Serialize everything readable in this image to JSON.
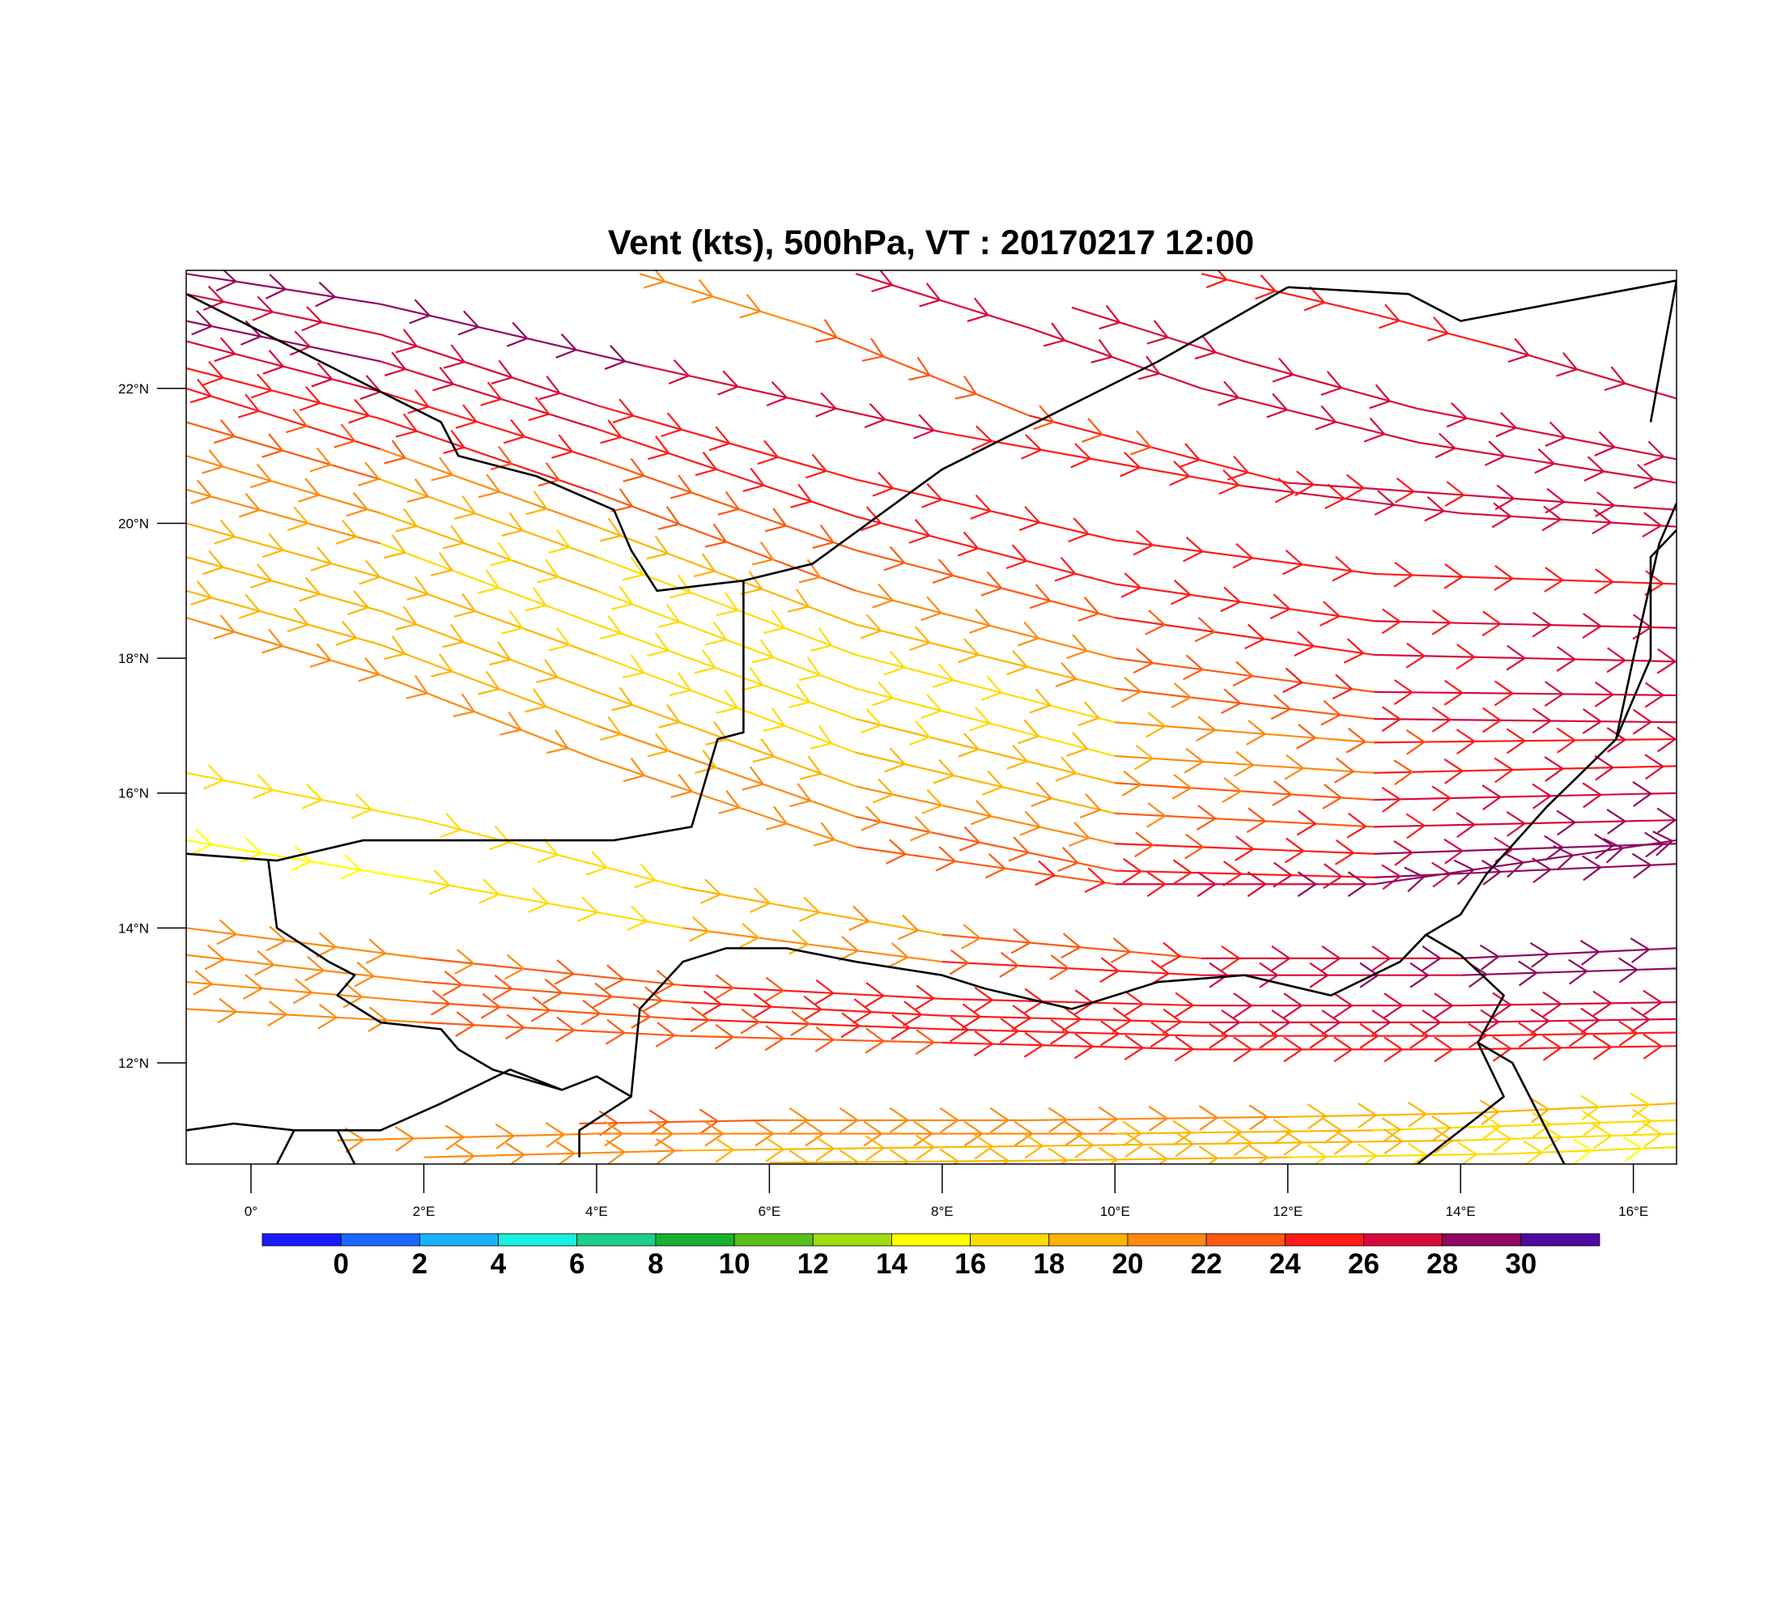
{
  "title": "Vent (kts), 500hPa, VT : 20170217  12:00",
  "map": {
    "lon_range": [
      -0.75,
      16.5
    ],
    "lat_range": [
      10.5,
      23.75
    ],
    "lon_ticks": [
      {
        "lon": 0,
        "label": "0°"
      },
      {
        "lon": 2,
        "label": "2°E"
      },
      {
        "lon": 4,
        "label": "4°E"
      },
      {
        "lon": 6,
        "label": "6°E"
      },
      {
        "lon": 8,
        "label": "8°E"
      },
      {
        "lon": 10,
        "label": "10°E"
      },
      {
        "lon": 12,
        "label": "12°E"
      },
      {
        "lon": 14,
        "label": "14°E"
      },
      {
        "lon": 16,
        "label": "16°E"
      }
    ],
    "lat_ticks": [
      {
        "lat": 12,
        "label": "12°N"
      },
      {
        "lat": 14,
        "label": "14°N"
      },
      {
        "lat": 16,
        "label": "16°N"
      },
      {
        "lat": 18,
        "label": "18°N"
      },
      {
        "lat": 20,
        "label": "20°N"
      },
      {
        "lat": 22,
        "label": "22°N"
      }
    ],
    "borders": [
      [
        [
          -0.75,
          23.4
        ],
        [
          0.8,
          22.4
        ],
        [
          2.2,
          21.5
        ],
        [
          2.4,
          21.0
        ],
        [
          3.3,
          20.7
        ],
        [
          4.2,
          20.2
        ],
        [
          4.4,
          19.6
        ],
        [
          4.7,
          19.0
        ],
        [
          5.7,
          19.15
        ],
        [
          6.5,
          19.4
        ],
        [
          8.0,
          20.8
        ],
        [
          10.5,
          22.4
        ],
        [
          12.0,
          23.5
        ]
      ],
      [
        [
          5.7,
          19.15
        ],
        [
          5.7,
          16.9
        ],
        [
          5.4,
          16.8
        ],
        [
          5.1,
          15.5
        ],
        [
          4.2,
          15.3
        ],
        [
          1.3,
          15.3
        ],
        [
          0.3,
          15.0
        ],
        [
          -0.75,
          15.1
        ]
      ],
      [
        [
          0.2,
          15.0
        ],
        [
          0.3,
          14.0
        ],
        [
          0.9,
          13.5
        ],
        [
          1.2,
          13.3
        ],
        [
          1.0,
          13.0
        ],
        [
          1.5,
          12.6
        ],
        [
          2.2,
          12.5
        ],
        [
          2.4,
          12.2
        ],
        [
          2.8,
          11.9
        ],
        [
          3.6,
          11.6
        ],
        [
          4.0,
          11.8
        ],
        [
          4.4,
          11.5
        ],
        [
          3.8,
          11.0
        ],
        [
          3.8,
          10.6
        ]
      ],
      [
        [
          4.4,
          11.5
        ],
        [
          4.5,
          12.8
        ],
        [
          5.0,
          13.5
        ],
        [
          5.5,
          13.7
        ],
        [
          6.2,
          13.7
        ],
        [
          7.0,
          13.5
        ],
        [
          8.0,
          13.3
        ],
        [
          8.5,
          13.1
        ],
        [
          9.5,
          12.8
        ],
        [
          10.5,
          13.2
        ],
        [
          11.5,
          13.3
        ],
        [
          12.5,
          13.0
        ],
        [
          13.3,
          13.5
        ],
        [
          13.6,
          13.9
        ],
        [
          14.0,
          14.2
        ],
        [
          14.3,
          14.8
        ],
        [
          15.0,
          15.8
        ],
        [
          15.8,
          16.8
        ],
        [
          16.2,
          18.0
        ],
        [
          16.2,
          19.5
        ],
        [
          16.5,
          19.9
        ]
      ],
      [
        [
          13.6,
          13.9
        ],
        [
          14.0,
          13.6
        ],
        [
          14.5,
          13.0
        ],
        [
          14.2,
          12.3
        ],
        [
          14.6,
          12.0
        ],
        [
          15.0,
          11.0
        ],
        [
          15.2,
          10.5
        ]
      ],
      [
        [
          14.2,
          12.3
        ],
        [
          14.5,
          11.5
        ],
        [
          13.5,
          10.5
        ]
      ],
      [
        [
          15.8,
          16.8
        ],
        [
          16.0,
          18.0
        ],
        [
          16.3,
          19.7
        ],
        [
          16.5,
          20.3
        ]
      ],
      [
        [
          13.4,
          23.4
        ],
        [
          14.0,
          23.0
        ],
        [
          16.5,
          23.6
        ]
      ],
      [
        [
          16.5,
          23.6
        ],
        [
          16.2,
          21.5
        ]
      ],
      [
        [
          12.0,
          23.5
        ],
        [
          13.4,
          23.4
        ]
      ],
      [
        [
          -0.75,
          11.0
        ],
        [
          -0.2,
          11.1
        ],
        [
          0.5,
          11.0
        ],
        [
          1.5,
          11.0
        ],
        [
          2.2,
          11.4
        ],
        [
          3.0,
          11.9
        ],
        [
          3.6,
          11.6
        ]
      ],
      [
        [
          0.5,
          11.0
        ],
        [
          0.3,
          10.5
        ]
      ],
      [
        [
          1.0,
          11.0
        ],
        [
          1.2,
          10.5
        ]
      ]
    ]
  },
  "colorbar": {
    "labels": [
      "0",
      "2",
      "4",
      "6",
      "8",
      "10",
      "12",
      "14",
      "16",
      "18",
      "20",
      "22",
      "24",
      "26",
      "28",
      "30"
    ],
    "colors": [
      "#1a1aff",
      "#1a66ff",
      "#1ab2ff",
      "#1af0e0",
      "#1ad08a",
      "#18b030",
      "#58c018",
      "#a0dc10",
      "#ffff00",
      "#ffdc00",
      "#ffb400",
      "#ff8a10",
      "#ff5a10",
      "#ff1a1a",
      "#d80a3a",
      "#900860",
      "#500aa0"
    ]
  },
  "streamlines": [
    {
      "pts": [
        [
          -0.75,
          23.7
        ],
        [
          1.5,
          23.25
        ],
        [
          4.5,
          22.35
        ],
        [
          8.0,
          21.35
        ],
        [
          11.5,
          20.55
        ],
        [
          14.0,
          20.15
        ],
        [
          16.5,
          19.95
        ]
      ],
      "speeds": [
        30,
        30,
        29,
        27,
        26,
        28,
        29
      ]
    },
    {
      "pts": [
        [
          -0.75,
          23.4
        ],
        [
          1.5,
          22.8
        ],
        [
          4.0,
          21.75
        ],
        [
          7.0,
          20.65
        ],
        [
          10.0,
          19.75
        ],
        [
          13.0,
          19.25
        ],
        [
          16.5,
          19.1
        ]
      ],
      "speeds": [
        29,
        28,
        27,
        26,
        25,
        26,
        27
      ]
    },
    {
      "pts": [
        [
          -0.75,
          23.0
        ],
        [
          1.5,
          22.4
        ],
        [
          4.0,
          21.4
        ],
        [
          7.0,
          20.1
        ],
        [
          10.0,
          19.1
        ],
        [
          13.0,
          18.55
        ],
        [
          16.5,
          18.45
        ]
      ],
      "speeds": [
        30,
        28,
        26,
        25,
        25,
        26,
        28
      ]
    },
    {
      "pts": [
        [
          -0.75,
          22.7
        ],
        [
          1.5,
          21.95
        ],
        [
          4.0,
          20.95
        ],
        [
          7.0,
          19.6
        ],
        [
          10.0,
          18.6
        ],
        [
          13.0,
          18.05
        ],
        [
          16.5,
          17.95
        ]
      ],
      "speeds": [
        29,
        27,
        25,
        24,
        24,
        26,
        29
      ]
    },
    {
      "pts": [
        [
          -0.75,
          22.3
        ],
        [
          1.5,
          21.55
        ],
        [
          4.0,
          20.45
        ],
        [
          7.0,
          19.0
        ],
        [
          10.0,
          18.0
        ],
        [
          13.0,
          17.5
        ],
        [
          16.5,
          17.45
        ]
      ],
      "speeds": [
        27,
        26,
        24,
        22,
        23,
        26,
        28
      ]
    },
    {
      "pts": [
        [
          -0.75,
          22.0
        ],
        [
          1.5,
          21.1
        ],
        [
          4.0,
          19.95
        ],
        [
          7.0,
          18.5
        ],
        [
          10.0,
          17.55
        ],
        [
          13.0,
          17.1
        ],
        [
          16.5,
          17.05
        ]
      ],
      "speeds": [
        26,
        24,
        20,
        19,
        22,
        25,
        29
      ]
    },
    {
      "pts": [
        [
          -0.75,
          21.5
        ],
        [
          1.5,
          20.65
        ],
        [
          4.0,
          19.5
        ],
        [
          7.0,
          18.05
        ],
        [
          10.0,
          17.05
        ],
        [
          13.0,
          16.75
        ],
        [
          16.5,
          16.8
        ]
      ],
      "speeds": [
        24,
        22,
        18,
        17,
        20,
        24,
        28
      ]
    },
    {
      "pts": [
        [
          -0.75,
          21.0
        ],
        [
          1.5,
          20.15
        ],
        [
          4.0,
          19.0
        ],
        [
          7.0,
          17.55
        ],
        [
          10.0,
          16.55
        ],
        [
          13.0,
          16.3
        ],
        [
          16.5,
          16.4
        ]
      ],
      "speeds": [
        23,
        21,
        17,
        17,
        20,
        24,
        29
      ]
    },
    {
      "pts": [
        [
          -0.75,
          20.5
        ],
        [
          1.5,
          19.7
        ],
        [
          4.0,
          18.5
        ],
        [
          7.0,
          17.1
        ],
        [
          10.0,
          16.15
        ],
        [
          13.0,
          15.9
        ],
        [
          16.5,
          16.0
        ]
      ],
      "speeds": [
        22,
        20,
        17,
        18,
        21,
        25,
        30
      ]
    },
    {
      "pts": [
        [
          -0.75,
          20.0
        ],
        [
          1.5,
          19.2
        ],
        [
          4.0,
          18.05
        ],
        [
          7.0,
          16.6
        ],
        [
          10.0,
          15.7
        ],
        [
          13.0,
          15.5
        ],
        [
          16.5,
          15.6
        ]
      ],
      "speeds": [
        21,
        20,
        18,
        19,
        22,
        26,
        31
      ]
    },
    {
      "pts": [
        [
          -0.75,
          19.5
        ],
        [
          1.5,
          18.7
        ],
        [
          4.0,
          17.5
        ],
        [
          7.0,
          16.1
        ],
        [
          10.0,
          15.25
        ],
        [
          13.0,
          15.1
        ],
        [
          16.5,
          15.25
        ]
      ],
      "speeds": [
        21,
        20,
        19,
        20,
        23,
        27,
        31
      ]
    },
    {
      "pts": [
        [
          -0.75,
          19.0
        ],
        [
          1.5,
          18.2
        ],
        [
          4.0,
          17.0
        ],
        [
          7.0,
          15.65
        ],
        [
          10.0,
          14.85
        ],
        [
          13.0,
          14.75
        ],
        [
          16.5,
          14.95
        ]
      ],
      "speeds": [
        21,
        20,
        20,
        22,
        25,
        28,
        31
      ]
    },
    {
      "pts": [
        [
          -0.75,
          18.6
        ],
        [
          1.5,
          17.75
        ],
        [
          4.0,
          16.5
        ],
        [
          7.0,
          15.2
        ],
        [
          10.0,
          14.65
        ],
        [
          13.0,
          14.65
        ],
        [
          16.5,
          15.3
        ]
      ],
      "speeds": [
        22,
        21,
        21,
        23,
        26,
        30,
        31
      ]
    },
    {
      "pts": [
        [
          -0.75,
          16.3
        ],
        [
          2.0,
          15.6
        ],
        [
          5.0,
          14.6
        ],
        [
          8.0,
          13.9
        ],
        [
          11.0,
          13.55
        ],
        [
          14.0,
          13.55
        ],
        [
          16.5,
          13.7
        ]
      ],
      "speeds": [
        18,
        18,
        19,
        22,
        26,
        30,
        31
      ]
    },
    {
      "pts": [
        [
          -0.75,
          15.3
        ],
        [
          2.0,
          14.7
        ],
        [
          5.0,
          14.0
        ],
        [
          8.0,
          13.5
        ],
        [
          11.0,
          13.3
        ],
        [
          14.0,
          13.3
        ],
        [
          16.5,
          13.4
        ]
      ],
      "speeds": [
        16,
        17,
        19,
        23,
        27,
        30,
        31
      ]
    },
    {
      "pts": [
        [
          -0.75,
          14.0
        ],
        [
          2.0,
          13.55
        ],
        [
          5.0,
          13.15
        ],
        [
          8.0,
          12.95
        ],
        [
          11.0,
          12.85
        ],
        [
          14.0,
          12.85
        ],
        [
          16.5,
          12.9
        ]
      ],
      "speeds": [
        21,
        22,
        24,
        26,
        27,
        28,
        28
      ]
    },
    {
      "pts": [
        [
          -0.75,
          13.6
        ],
        [
          2.0,
          13.2
        ],
        [
          5.0,
          12.9
        ],
        [
          8.0,
          12.7
        ],
        [
          11.0,
          12.6
        ],
        [
          14.0,
          12.6
        ],
        [
          16.5,
          12.65
        ]
      ],
      "speeds": [
        22,
        23,
        25,
        26,
        27,
        27,
        27
      ]
    },
    {
      "pts": [
        [
          -0.75,
          13.2
        ],
        [
          2.0,
          12.9
        ],
        [
          5.0,
          12.65
        ],
        [
          8.0,
          12.5
        ],
        [
          11.0,
          12.4
        ],
        [
          14.0,
          12.4
        ],
        [
          16.5,
          12.45
        ]
      ],
      "speeds": [
        22,
        23,
        24,
        26,
        26,
        26,
        26
      ]
    },
    {
      "pts": [
        [
          -0.75,
          12.8
        ],
        [
          2.0,
          12.6
        ],
        [
          5.0,
          12.4
        ],
        [
          8.0,
          12.3
        ],
        [
          11.0,
          12.2
        ],
        [
          14.0,
          12.2
        ],
        [
          16.5,
          12.25
        ]
      ],
      "speeds": [
        22,
        23,
        24,
        25,
        25,
        25,
        25
      ]
    },
    {
      "pts": [
        [
          3.8,
          11.1
        ],
        [
          6.0,
          11.15
        ],
        [
          9.0,
          11.15
        ],
        [
          12.0,
          11.2
        ],
        [
          14.0,
          11.25
        ],
        [
          16.5,
          11.4
        ]
      ],
      "speeds": [
        23,
        23,
        22,
        21,
        20,
        18
      ]
    },
    {
      "pts": [
        [
          1.0,
          10.85
        ],
        [
          4.0,
          10.95
        ],
        [
          7.0,
          10.95
        ],
        [
          10.0,
          10.95
        ],
        [
          13.0,
          11.0
        ],
        [
          16.5,
          11.15
        ]
      ],
      "speeds": [
        23,
        22,
        22,
        21,
        20,
        17
      ]
    },
    {
      "pts": [
        [
          2.0,
          10.6
        ],
        [
          5.0,
          10.7
        ],
        [
          8.0,
          10.75
        ],
        [
          11.0,
          10.8
        ],
        [
          14.0,
          10.85
        ],
        [
          16.5,
          10.95
        ]
      ],
      "speeds": [
        22,
        21,
        20,
        20,
        19,
        17
      ]
    },
    {
      "pts": [
        [
          6.0,
          10.52
        ],
        [
          9.0,
          10.55
        ],
        [
          12.0,
          10.6
        ],
        [
          14.5,
          10.65
        ],
        [
          16.5,
          10.75
        ]
      ],
      "speeds": [
        20,
        20,
        19,
        18,
        16
      ]
    },
    {
      "pts": [
        [
          11.0,
          23.7
        ],
        [
          13.0,
          23.1
        ],
        [
          14.5,
          22.6
        ],
        [
          16.5,
          21.85
        ]
      ],
      "speeds": [
        25,
        26,
        27,
        27
      ]
    },
    {
      "pts": [
        [
          9.5,
          23.2
        ],
        [
          11.5,
          22.4
        ],
        [
          13.5,
          21.7
        ],
        [
          16.5,
          20.95
        ]
      ],
      "speeds": [
        28,
        27,
        27,
        28
      ]
    },
    {
      "pts": [
        [
          7.0,
          23.7
        ],
        [
          9.0,
          22.9
        ],
        [
          11.0,
          22.0
        ],
        [
          13.5,
          21.2
        ],
        [
          16.5,
          20.6
        ]
      ],
      "speeds": [
        28,
        28,
        27,
        27,
        28
      ]
    },
    {
      "pts": [
        [
          4.5,
          23.7
        ],
        [
          6.5,
          22.9
        ],
        [
          9.0,
          21.6
        ],
        [
          12.0,
          20.6
        ],
        [
          16.5,
          20.2
        ]
      ],
      "speeds": [
        21,
        23,
        24,
        26,
        28
      ]
    }
  ]
}
